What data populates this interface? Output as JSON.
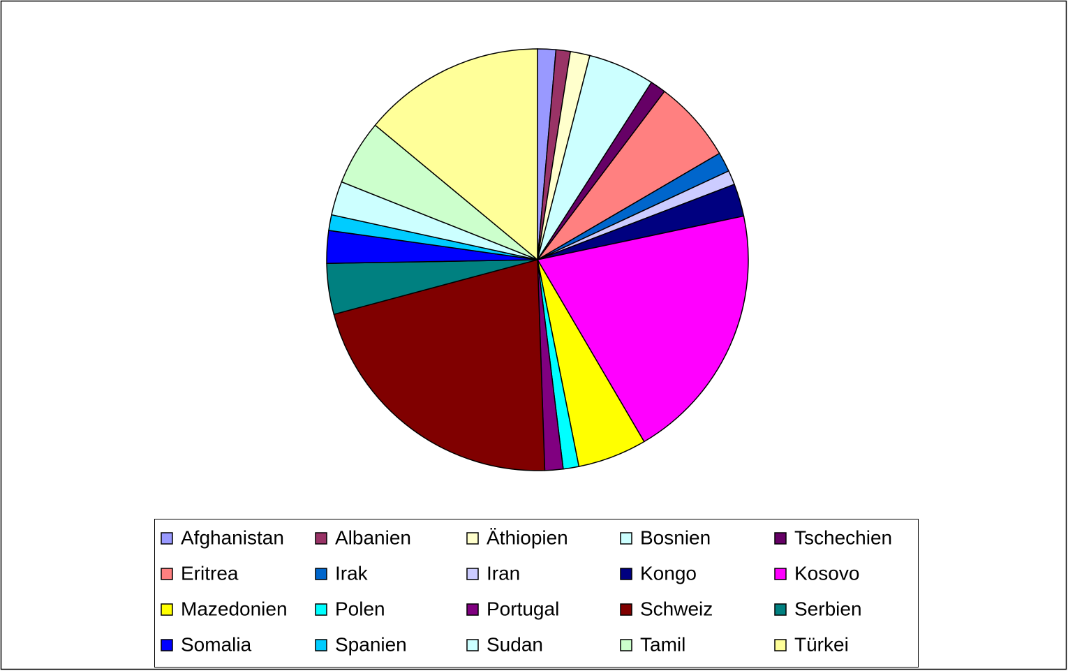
{
  "chart_data": {
    "type": "pie",
    "categories": [
      "Afghanistan",
      "Albanien",
      "Äthiopien",
      "Bosnien",
      "Tschechien",
      "Eritrea",
      "Irak",
      "Iran",
      "Kongo",
      "Kosovo",
      "Mazedonien",
      "Polen",
      "Portugal",
      "Schweiz",
      "Serbien",
      "Somalia",
      "Spanien",
      "Sudan",
      "Tamil",
      "Türkei"
    ],
    "values": [
      1.4,
      1.1,
      1.5,
      5.1,
      1.2,
      6.3,
      1.5,
      1.1,
      2.5,
      19.9,
      5.3,
      1.2,
      1.4,
      21.4,
      3.9,
      2.5,
      1.2,
      2.6,
      5.0,
      14.0
    ],
    "colors": [
      "#9999ff",
      "#993366",
      "#ffffcc",
      "#ccffff",
      "#660066",
      "#ff8080",
      "#0066cc",
      "#ccccff",
      "#000080",
      "#ff00ff",
      "#ffff00",
      "#00ffff",
      "#800080",
      "#800000",
      "#008080",
      "#0000ff",
      "#00ccff",
      "#ccffff",
      "#ccffcc",
      "#ffff99"
    ],
    "legend": "bottom"
  }
}
